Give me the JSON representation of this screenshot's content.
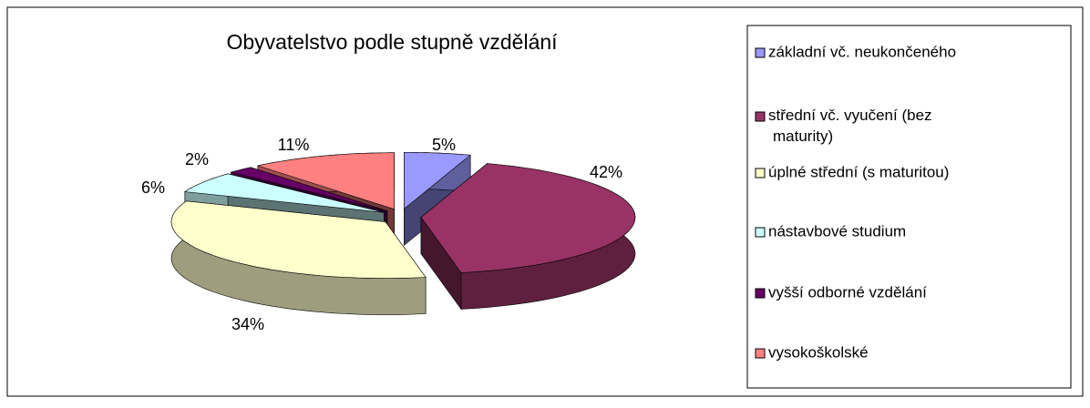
{
  "chart_data": {
    "type": "pie",
    "title": "Obyvatelstvo podle stupně vzdělání",
    "categories": [
      "základní vč. neukončeného",
      "střední vč. vyučení (bez maturity)",
      "úplné střední (s maturitou)",
      "nástavbové studium",
      "vyšší odborné vzdělání",
      "vysokoškolské"
    ],
    "values": [
      5,
      42,
      34,
      6,
      2,
      11
    ],
    "value_labels": [
      "5%",
      "42%",
      "34%",
      "6%",
      "2%",
      "11%"
    ],
    "colors": [
      "#9999ff",
      "#993366",
      "#ffffcc",
      "#ccffff",
      "#660066",
      "#ff8080"
    ],
    "legend": "right"
  }
}
